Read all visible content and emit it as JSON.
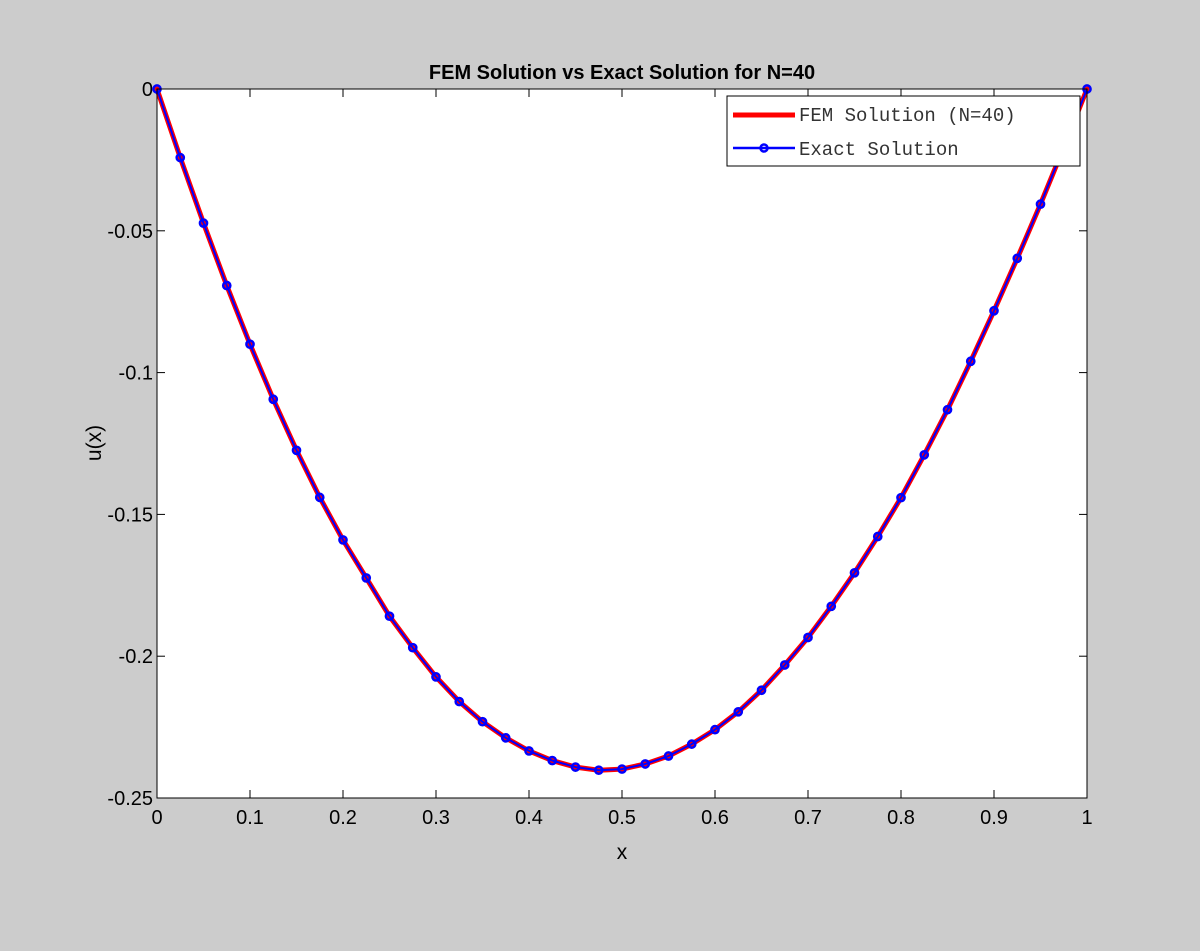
{
  "chart_data": {
    "type": "line",
    "title": "FEM Solution vs Exact Solution for N=40",
    "xlabel": "x",
    "ylabel": "u(x)",
    "xlim": [
      0,
      1
    ],
    "ylim": [
      -0.25,
      0
    ],
    "xticks": [
      0,
      0.1,
      0.2,
      0.3,
      0.4,
      0.5,
      0.6,
      0.7,
      0.8,
      0.9,
      1
    ],
    "xtick_labels": [
      "0",
      "0.1",
      "0.2",
      "0.3",
      "0.4",
      "0.5",
      "0.6",
      "0.7",
      "0.8",
      "0.9",
      "1"
    ],
    "yticks": [
      0,
      -0.05,
      -0.1,
      -0.15,
      -0.2,
      -0.25
    ],
    "ytick_labels": [
      "0",
      "-0.05",
      "-0.1",
      "-0.15",
      "-0.2",
      "-0.25"
    ],
    "grid": false,
    "legend_position": "top-right",
    "x": [
      0,
      0.025,
      0.05,
      0.075,
      0.1,
      0.125,
      0.15,
      0.175,
      0.2,
      0.225,
      0.25,
      0.275,
      0.3,
      0.325,
      0.35,
      0.375,
      0.4,
      0.425,
      0.45,
      0.475,
      0.5,
      0.525,
      0.55,
      0.575,
      0.6,
      0.625,
      0.65,
      0.675,
      0.7,
      0.725,
      0.75,
      0.775,
      0.8,
      0.825,
      0.85,
      0.875,
      0.9,
      0.925,
      0.95,
      0.975,
      1
    ],
    "series": [
      {
        "name": "FEM Solution (N=40)",
        "color": "#ff0000",
        "style": "solid-thick",
        "values": [
          0,
          -0.0242,
          -0.0473,
          -0.0693,
          -0.09,
          -0.1094,
          -0.1274,
          -0.144,
          -0.159,
          -0.1724,
          -0.1859,
          -0.197,
          -0.2073,
          -0.216,
          -0.2231,
          -0.2288,
          -0.2334,
          -0.2368,
          -0.2391,
          -0.2402,
          -0.2398,
          -0.238,
          -0.2352,
          -0.231,
          -0.2259,
          -0.2196,
          -0.212,
          -0.2031,
          -0.1934,
          -0.1824,
          -0.1706,
          -0.1578,
          -0.1441,
          -0.129,
          -0.1131,
          -0.096,
          -0.0782,
          -0.0597,
          -0.0406,
          -0.0206,
          0
        ]
      },
      {
        "name": "Exact Solution",
        "color": "#0000ff",
        "style": "solid-with-circle-markers",
        "values": [
          0,
          -0.0242,
          -0.0473,
          -0.0693,
          -0.09,
          -0.1094,
          -0.1274,
          -0.144,
          -0.159,
          -0.1724,
          -0.1859,
          -0.197,
          -0.2073,
          -0.216,
          -0.2231,
          -0.2288,
          -0.2334,
          -0.2368,
          -0.2391,
          -0.2402,
          -0.2398,
          -0.238,
          -0.2352,
          -0.231,
          -0.2259,
          -0.2196,
          -0.212,
          -0.2031,
          -0.1934,
          -0.1824,
          -0.1706,
          -0.1578,
          -0.1441,
          -0.129,
          -0.1131,
          -0.096,
          -0.0782,
          -0.0597,
          -0.0406,
          -0.0206,
          0
        ]
      }
    ]
  }
}
